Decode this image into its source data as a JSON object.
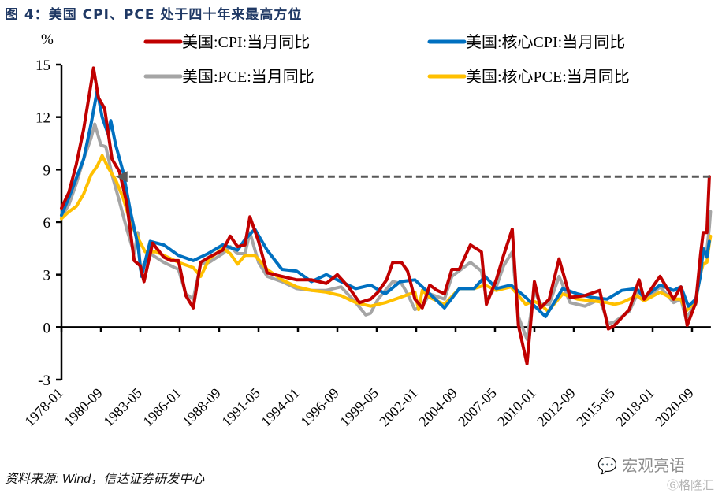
{
  "figure": {
    "title": "图  4：美国 CPI、PCE 处于四十年来最高方位",
    "source": "资料来源: Wind，信达证券研发中心",
    "watermark": "宏观亮语",
    "watermark2": "格隆汇"
  },
  "chart_data": {
    "type": "line",
    "title": "图  4：美国 CPI、PCE 处于四十年来最高方位",
    "xlabel": "",
    "ylabel": "%",
    "ylim": [
      -3,
      15
    ],
    "yticks": [
      "15",
      "12",
      "9",
      "6",
      "3",
      "0",
      "-3"
    ],
    "ytick_values": [
      15,
      12,
      9,
      6,
      3,
      0,
      -3
    ],
    "xticks": [
      "1978-01",
      "1980-09",
      "1983-05",
      "1986-01",
      "1988-09",
      "1991-05",
      "1994-01",
      "1996-09",
      "1999-05",
      "2002-01",
      "2004-09",
      "2007-05",
      "2010-01",
      "2012-09",
      "2015-05",
      "2018-01",
      "2020-09"
    ],
    "x_range": [
      "1978-01",
      "2021-11"
    ],
    "grid": false,
    "legend_position": "top",
    "annotation": "dashed arrow from latest CPI (~8.6) back to same level around 1981",
    "annotation_level": 8.6,
    "annotation_target": "1981-09",
    "series": [
      {
        "name": "美国:CPI:当月同比",
        "color": "#c00000",
        "points": [
          [
            "1978-01",
            6.8
          ],
          [
            "1978-07",
            7.7
          ],
          [
            "1979-01",
            9.3
          ],
          [
            "1979-07",
            11.3
          ],
          [
            "1980-01",
            13.9
          ],
          [
            "1980-03",
            14.8
          ],
          [
            "1980-07",
            13.1
          ],
          [
            "1980-12",
            12.5
          ],
          [
            "1981-06",
            9.6
          ],
          [
            "1981-12",
            8.9
          ],
          [
            "1982-06",
            7.1
          ],
          [
            "1982-12",
            3.8
          ],
          [
            "1983-05",
            3.5
          ],
          [
            "1983-08",
            2.6
          ],
          [
            "1984-03",
            4.8
          ],
          [
            "1984-12",
            4.0
          ],
          [
            "1985-06",
            3.8
          ],
          [
            "1985-12",
            3.8
          ],
          [
            "1986-06",
            1.8
          ],
          [
            "1986-12",
            1.1
          ],
          [
            "1987-06",
            3.7
          ],
          [
            "1988-01",
            4.0
          ],
          [
            "1988-12",
            4.4
          ],
          [
            "1989-06",
            5.2
          ],
          [
            "1989-12",
            4.6
          ],
          [
            "1990-06",
            4.7
          ],
          [
            "1990-10",
            6.3
          ],
          [
            "1991-05",
            4.9
          ],
          [
            "1991-12",
            3.1
          ],
          [
            "1992-12",
            2.9
          ],
          [
            "1993-12",
            2.7
          ],
          [
            "1994-12",
            2.7
          ],
          [
            "1995-12",
            2.5
          ],
          [
            "1996-09",
            3.0
          ],
          [
            "1997-06",
            2.3
          ],
          [
            "1998-03",
            1.4
          ],
          [
            "1998-12",
            1.6
          ],
          [
            "1999-06",
            2.0
          ],
          [
            "2000-01",
            2.7
          ],
          [
            "2000-06",
            3.7
          ],
          [
            "2001-01",
            3.7
          ],
          [
            "2001-06",
            3.2
          ],
          [
            "2001-12",
            1.6
          ],
          [
            "2002-06",
            1.1
          ],
          [
            "2002-12",
            2.4
          ],
          [
            "2003-06",
            2.1
          ],
          [
            "2003-12",
            1.9
          ],
          [
            "2004-06",
            3.3
          ],
          [
            "2004-12",
            3.3
          ],
          [
            "2005-09",
            4.7
          ],
          [
            "2006-06",
            4.3
          ],
          [
            "2006-10",
            1.3
          ],
          [
            "2007-06",
            2.7
          ],
          [
            "2007-12",
            4.1
          ],
          [
            "2008-07",
            5.6
          ],
          [
            "2008-12",
            0.1
          ],
          [
            "2009-07",
            -2.1
          ],
          [
            "2010-01",
            2.6
          ],
          [
            "2010-06",
            1.1
          ],
          [
            "2011-01",
            1.6
          ],
          [
            "2011-09",
            3.9
          ],
          [
            "2012-06",
            1.7
          ],
          [
            "2013-06",
            1.8
          ],
          [
            "2014-06",
            2.1
          ],
          [
            "2015-01",
            -0.1
          ],
          [
            "2015-06",
            0.1
          ],
          [
            "2016-06",
            1.0
          ],
          [
            "2017-02",
            2.7
          ],
          [
            "2017-06",
            1.6
          ],
          [
            "2018-07",
            2.9
          ],
          [
            "2019-06",
            1.6
          ],
          [
            "2019-12",
            2.3
          ],
          [
            "2020-05",
            0.1
          ],
          [
            "2020-12",
            1.4
          ],
          [
            "2021-04",
            4.2
          ],
          [
            "2021-06",
            5.4
          ],
          [
            "2021-09",
            5.4
          ],
          [
            "2021-11",
            8.6
          ]
        ]
      },
      {
        "name": "美国:核心CPI:当月同比",
        "color": "#0070c0",
        "points": [
          [
            "1978-01",
            6.4
          ],
          [
            "1978-07",
            7.4
          ],
          [
            "1979-01",
            8.5
          ],
          [
            "1979-07",
            9.6
          ],
          [
            "1980-01",
            11.6
          ],
          [
            "1980-06",
            13.5
          ],
          [
            "1980-10",
            12.0
          ],
          [
            "1981-03",
            11.0
          ],
          [
            "1981-05",
            11.8
          ],
          [
            "1981-09",
            10.4
          ],
          [
            "1982-03",
            8.9
          ],
          [
            "1982-09",
            6.6
          ],
          [
            "1983-03",
            4.7
          ],
          [
            "1983-06",
            2.9
          ],
          [
            "1984-01",
            4.9
          ],
          [
            "1984-12",
            4.7
          ],
          [
            "1985-12",
            4.1
          ],
          [
            "1986-12",
            3.8
          ],
          [
            "1987-12",
            4.2
          ],
          [
            "1988-12",
            4.7
          ],
          [
            "1989-12",
            4.4
          ],
          [
            "1990-06",
            5.0
          ],
          [
            "1991-02",
            5.6
          ],
          [
            "1991-12",
            4.4
          ],
          [
            "1992-12",
            3.3
          ],
          [
            "1993-12",
            3.2
          ],
          [
            "1994-12",
            2.6
          ],
          [
            "1995-12",
            3.0
          ],
          [
            "1996-12",
            2.6
          ],
          [
            "1997-12",
            2.2
          ],
          [
            "1998-12",
            2.4
          ],
          [
            "1999-12",
            1.9
          ],
          [
            "2000-12",
            2.6
          ],
          [
            "2001-12",
            2.7
          ],
          [
            "2002-12",
            1.9
          ],
          [
            "2003-12",
            1.1
          ],
          [
            "2004-12",
            2.2
          ],
          [
            "2005-12",
            2.2
          ],
          [
            "2006-09",
            2.9
          ],
          [
            "2007-06",
            2.2
          ],
          [
            "2008-06",
            2.4
          ],
          [
            "2009-06",
            1.7
          ],
          [
            "2010-10",
            0.6
          ],
          [
            "2011-12",
            2.2
          ],
          [
            "2012-12",
            1.9
          ],
          [
            "2013-12",
            1.7
          ],
          [
            "2014-12",
            1.6
          ],
          [
            "2015-12",
            2.1
          ],
          [
            "2016-12",
            2.2
          ],
          [
            "2017-06",
            1.7
          ],
          [
            "2018-07",
            2.4
          ],
          [
            "2019-06",
            2.1
          ],
          [
            "2019-12",
            2.3
          ],
          [
            "2020-06",
            1.2
          ],
          [
            "2020-12",
            1.6
          ],
          [
            "2021-04",
            3.0
          ],
          [
            "2021-06",
            4.5
          ],
          [
            "2021-09",
            4.0
          ],
          [
            "2021-11",
            4.9
          ]
        ]
      },
      {
        "name": "美国:PCE:当月同比",
        "color": "#a5a5a5",
        "points": [
          [
            "1978-01",
            6.3
          ],
          [
            "1978-07",
            7.0
          ],
          [
            "1979-01",
            8.2
          ],
          [
            "1979-07",
            9.6
          ],
          [
            "1980-01",
            10.8
          ],
          [
            "1980-04",
            11.6
          ],
          [
            "1980-09",
            10.4
          ],
          [
            "1981-01",
            10.3
          ],
          [
            "1981-06",
            8.7
          ],
          [
            "1981-12",
            7.2
          ],
          [
            "1982-06",
            5.6
          ],
          [
            "1982-12",
            4.2
          ],
          [
            "1983-03",
            5.4
          ],
          [
            "1983-05",
            3.3
          ],
          [
            "1984-01",
            4.2
          ],
          [
            "1984-12",
            3.7
          ],
          [
            "1985-12",
            3.3
          ],
          [
            "1986-06",
            1.9
          ],
          [
            "1986-12",
            1.6
          ],
          [
            "1987-06",
            3.6
          ],
          [
            "1988-01",
            3.7
          ],
          [
            "1988-12",
            4.2
          ],
          [
            "1989-06",
            4.6
          ],
          [
            "1989-12",
            4.2
          ],
          [
            "1990-06",
            4.2
          ],
          [
            "1990-10",
            5.4
          ],
          [
            "1991-05",
            3.7
          ],
          [
            "1991-12",
            2.9
          ],
          [
            "1992-12",
            2.6
          ],
          [
            "1993-12",
            2.2
          ],
          [
            "1994-12",
            2.1
          ],
          [
            "1995-12",
            2.1
          ],
          [
            "1996-12",
            2.3
          ],
          [
            "1997-12",
            1.4
          ],
          [
            "1998-08",
            0.7
          ],
          [
            "1998-12",
            0.8
          ],
          [
            "1999-06",
            1.6
          ],
          [
            "2000-06",
            2.6
          ],
          [
            "2001-01",
            2.5
          ],
          [
            "2001-06",
            1.9
          ],
          [
            "2001-12",
            1.0
          ],
          [
            "2002-06",
            1.2
          ],
          [
            "2002-12",
            1.9
          ],
          [
            "2003-12",
            1.6
          ],
          [
            "2004-06",
            2.9
          ],
          [
            "2005-09",
            3.7
          ],
          [
            "2006-06",
            3.2
          ],
          [
            "2006-10",
            1.6
          ],
          [
            "2007-06",
            2.3
          ],
          [
            "2007-12",
            3.5
          ],
          [
            "2008-07",
            4.3
          ],
          [
            "2008-12",
            0.6
          ],
          [
            "2009-07",
            -0.7
          ],
          [
            "2010-01",
            2.1
          ],
          [
            "2010-06",
            1.3
          ],
          [
            "2011-01",
            1.3
          ],
          [
            "2011-09",
            2.9
          ],
          [
            "2012-06",
            1.4
          ],
          [
            "2013-06",
            1.2
          ],
          [
            "2014-06",
            1.6
          ],
          [
            "2015-01",
            0.2
          ],
          [
            "2015-06",
            0.3
          ],
          [
            "2016-06",
            0.9
          ],
          [
            "2017-02",
            2.1
          ],
          [
            "2017-06",
            1.5
          ],
          [
            "2018-07",
            2.3
          ],
          [
            "2019-06",
            1.4
          ],
          [
            "2019-12",
            1.6
          ],
          [
            "2020-04",
            0.5
          ],
          [
            "2020-12",
            1.3
          ],
          [
            "2021-04",
            3.6
          ],
          [
            "2021-06",
            4.1
          ],
          [
            "2021-09",
            4.4
          ],
          [
            "2021-11",
            5.7
          ],
          [
            "2021-12",
            6.6
          ]
        ]
      },
      {
        "name": "美国:核心PCE:当月同比",
        "color": "#ffc000",
        "points": [
          [
            "1978-01",
            6.2
          ],
          [
            "1978-07",
            6.6
          ],
          [
            "1979-01",
            6.9
          ],
          [
            "1979-07",
            7.6
          ],
          [
            "1980-01",
            8.7
          ],
          [
            "1980-06",
            9.2
          ],
          [
            "1980-10",
            9.8
          ],
          [
            "1981-03",
            9.1
          ],
          [
            "1981-09",
            8.4
          ],
          [
            "1982-03",
            7.4
          ],
          [
            "1982-09",
            6.0
          ],
          [
            "1983-03",
            5.1
          ],
          [
            "1983-09",
            4.3
          ],
          [
            "1984-06",
            4.3
          ],
          [
            "1984-12",
            4.1
          ],
          [
            "1985-12",
            3.7
          ],
          [
            "1986-12",
            3.4
          ],
          [
            "1987-06",
            2.9
          ],
          [
            "1988-01",
            3.9
          ],
          [
            "1988-12",
            4.5
          ],
          [
            "1989-06",
            4.2
          ],
          [
            "1989-12",
            3.6
          ],
          [
            "1990-06",
            4.1
          ],
          [
            "1991-02",
            4.1
          ],
          [
            "1991-12",
            3.3
          ],
          [
            "1992-12",
            2.7
          ],
          [
            "1993-12",
            2.3
          ],
          [
            "1994-12",
            2.1
          ],
          [
            "1995-12",
            2.0
          ],
          [
            "1996-12",
            1.8
          ],
          [
            "1997-12",
            1.4
          ],
          [
            "1998-12",
            1.2
          ],
          [
            "1999-12",
            1.4
          ],
          [
            "2000-12",
            1.7
          ],
          [
            "2001-12",
            2.0
          ],
          [
            "2002-03",
            1.0
          ],
          [
            "2002-06",
            2.1
          ],
          [
            "2002-12",
            1.7
          ],
          [
            "2003-12",
            1.3
          ],
          [
            "2004-12",
            2.2
          ],
          [
            "2005-12",
            2.2
          ],
          [
            "2006-09",
            2.4
          ],
          [
            "2007-06",
            2.1
          ],
          [
            "2008-06",
            2.3
          ],
          [
            "2009-06",
            1.3
          ],
          [
            "2009-12",
            1.5
          ],
          [
            "2010-06",
            1.3
          ],
          [
            "2010-12",
            0.9
          ],
          [
            "2011-12",
            1.9
          ],
          [
            "2012-12",
            1.6
          ],
          [
            "2013-12",
            1.5
          ],
          [
            "2014-12",
            1.4
          ],
          [
            "2015-06",
            1.3
          ],
          [
            "2015-12",
            1.4
          ],
          [
            "2016-12",
            1.8
          ],
          [
            "2017-06",
            1.5
          ],
          [
            "2018-07",
            2.0
          ],
          [
            "2019-06",
            1.6
          ],
          [
            "2019-12",
            1.6
          ],
          [
            "2020-04",
            0.9
          ],
          [
            "2020-12",
            1.5
          ],
          [
            "2021-04",
            3.1
          ],
          [
            "2021-06",
            3.6
          ],
          [
            "2021-09",
            3.7
          ],
          [
            "2021-11",
            4.8
          ],
          [
            "2021-12",
            5.2
          ]
        ]
      }
    ]
  }
}
